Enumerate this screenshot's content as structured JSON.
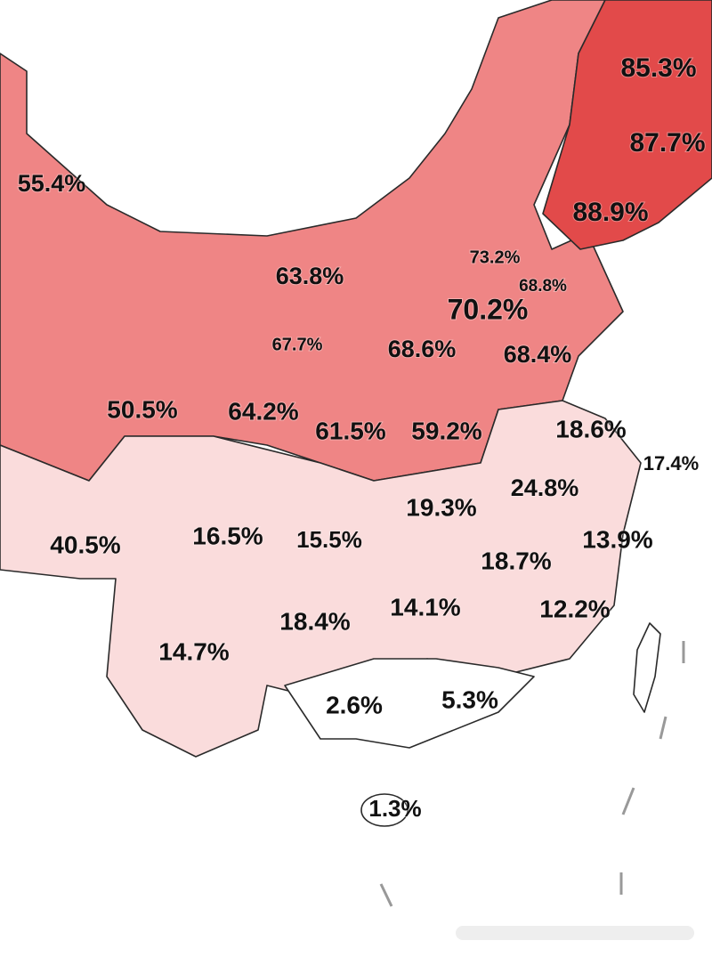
{
  "regions": [
    {
      "label": "85.3%"
    },
    {
      "label": "87.7%"
    },
    {
      "label": "88.9%"
    },
    {
      "label": "55.4%"
    },
    {
      "label": "63.8%"
    },
    {
      "label": "73.2%"
    },
    {
      "label": "68.8%"
    },
    {
      "label": "70.2%"
    },
    {
      "label": "67.7%"
    },
    {
      "label": "68.6%"
    },
    {
      "label": "68.4%"
    },
    {
      "label": "50.5%"
    },
    {
      "label": "64.2%"
    },
    {
      "label": "61.5%"
    },
    {
      "label": "59.2%"
    },
    {
      "label": "18.6%"
    },
    {
      "label": "17.4%"
    },
    {
      "label": "24.8%"
    },
    {
      "label": "19.3%"
    },
    {
      "label": "40.5%"
    },
    {
      "label": "16.5%"
    },
    {
      "label": "15.5%"
    },
    {
      "label": "13.9%"
    },
    {
      "label": "18.7%"
    },
    {
      "label": "12.2%"
    },
    {
      "label": "14.1%"
    },
    {
      "label": "18.4%"
    },
    {
      "label": "14.7%"
    },
    {
      "label": "2.6%"
    },
    {
      "label": "5.3%"
    },
    {
      "label": "1.3%"
    }
  ]
}
